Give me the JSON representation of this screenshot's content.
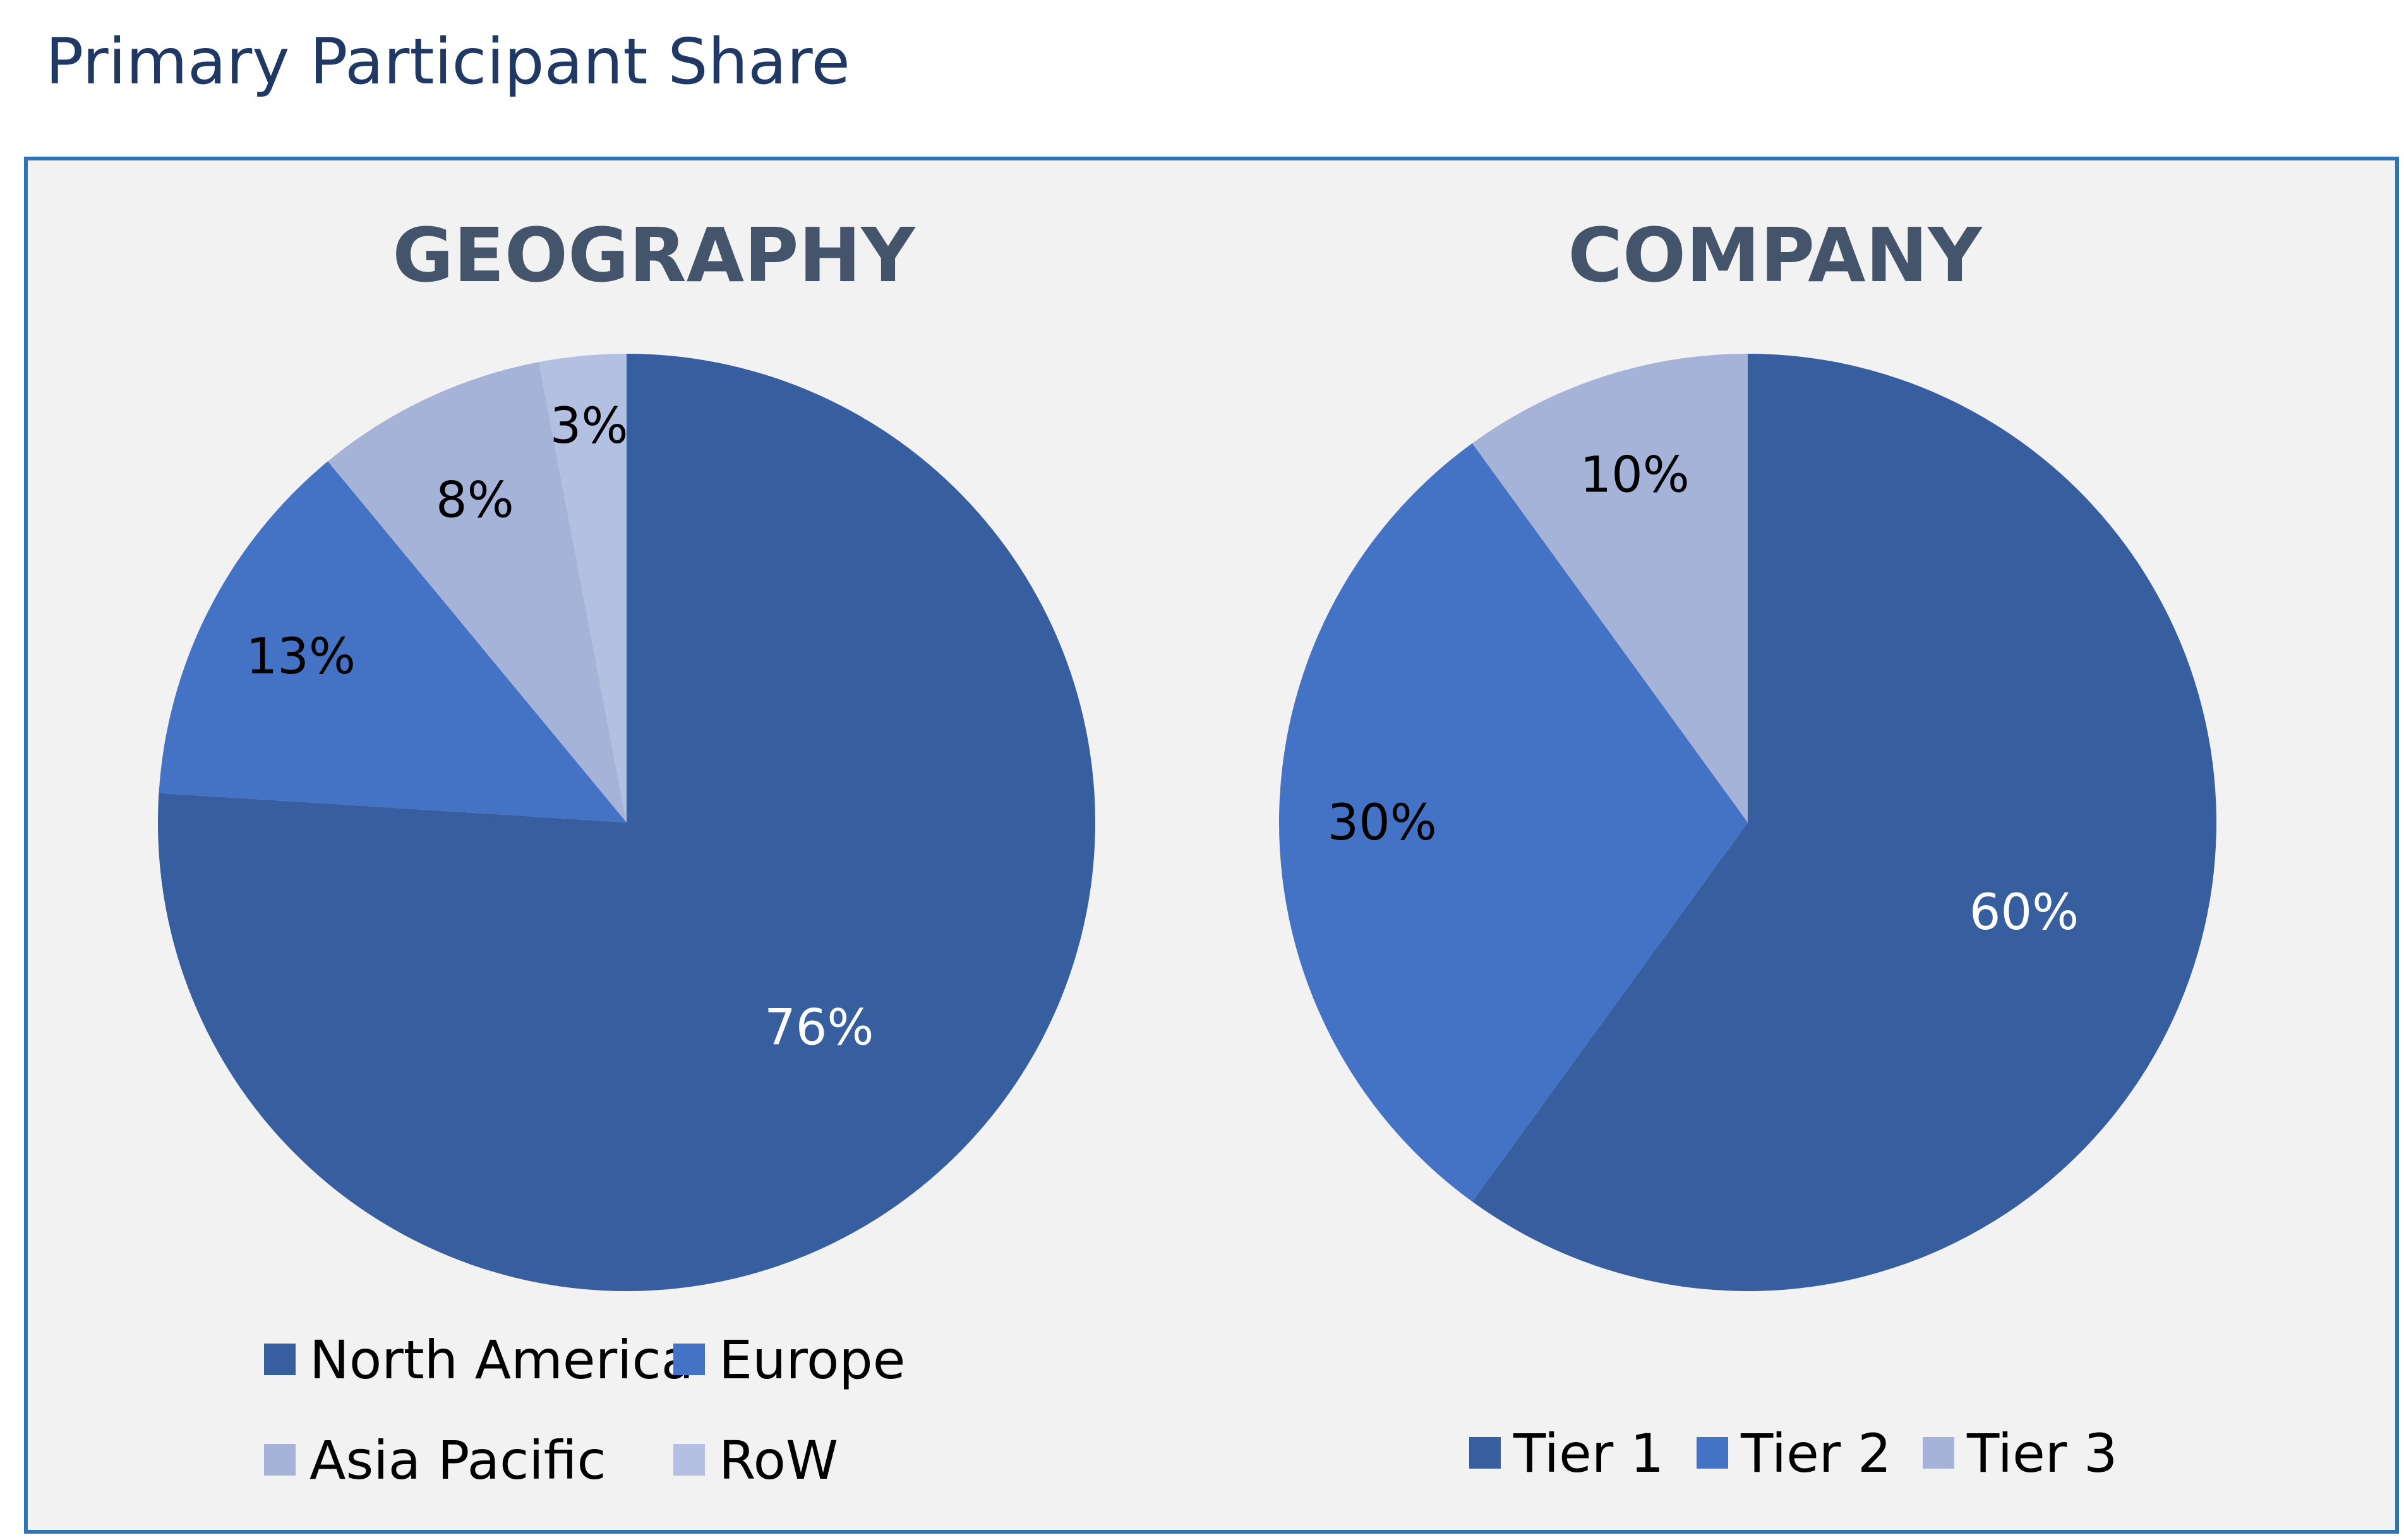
{
  "page_title": "Primary Participant Share",
  "chart_data": [
    {
      "type": "pie",
      "title": "GEOGRAPHY",
      "categories": [
        "North America",
        "Europe",
        "Asia Pacific",
        "RoW"
      ],
      "values": [
        76,
        13,
        8,
        3
      ],
      "labels": [
        "76%",
        "13%",
        "8%",
        "3%"
      ],
      "colors": [
        "#375e9f",
        "#4472c4",
        "#a5b3d8",
        "#b4c0e1"
      ],
      "label_colors": [
        "#ffffff",
        "#000000",
        "#000000",
        "#000000"
      ],
      "legend_placement": "bottom"
    },
    {
      "type": "pie",
      "title": "COMPANY",
      "categories": [
        "Tier 1",
        "Tier 2",
        "Tier 3"
      ],
      "values": [
        60,
        30,
        10
      ],
      "labels": [
        "60%",
        "30%",
        "10%"
      ],
      "colors": [
        "#375e9f",
        "#4472c4",
        "#a5b3d8"
      ],
      "label_colors": [
        "#ffffff",
        "#000000",
        "#000000"
      ],
      "legend_placement": "bottom"
    }
  ]
}
